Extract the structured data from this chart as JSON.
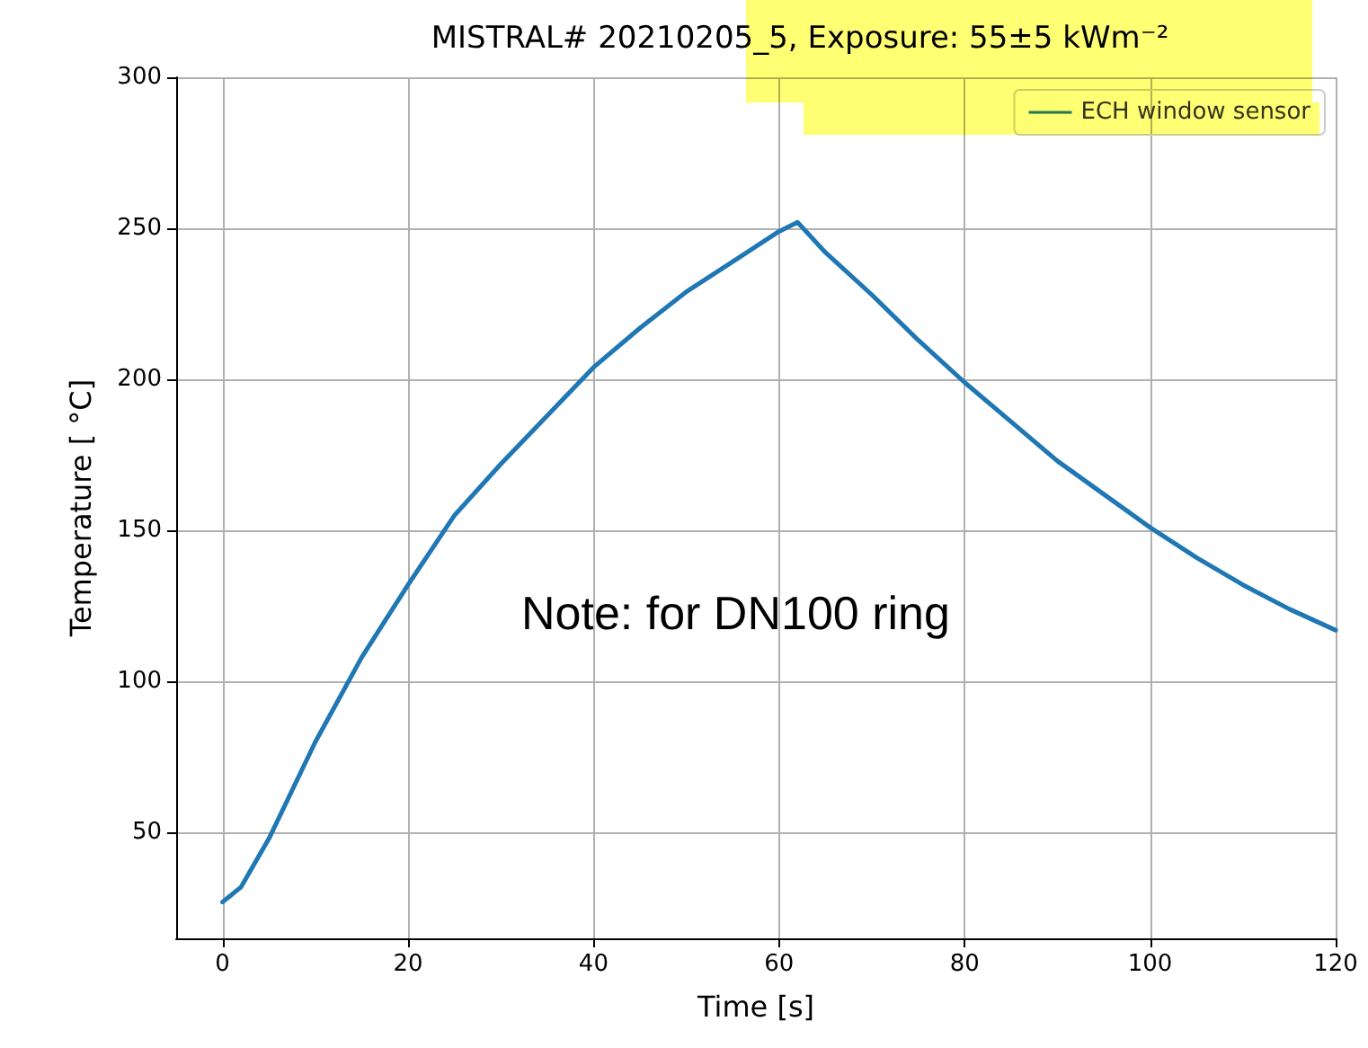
{
  "chart_data": {
    "type": "line",
    "title": "MISTRAL# 20210205_5, Exposure: 55±5 kWm⁻²",
    "xlabel": "Time [s]",
    "ylabel": "Temperature [ °C]",
    "annotations": [
      "Note: for DN100 ring"
    ],
    "x": [
      0,
      2,
      5,
      10,
      15,
      20,
      25,
      30,
      35,
      40,
      45,
      50,
      55,
      60,
      62,
      65,
      70,
      75,
      80,
      85,
      90,
      95,
      100,
      105,
      110,
      115,
      120
    ],
    "series": [
      {
        "name": "ECH window sensor",
        "color": "#1f77b4",
        "values": [
          27,
          32,
          48,
          80,
          108,
          132,
          155,
          172,
          188,
          204,
          217,
          229,
          239,
          249,
          252,
          242,
          228,
          213,
          199,
          186,
          173,
          162,
          151,
          141,
          132,
          124,
          117
        ]
      }
    ],
    "xlim": [
      -5,
      120
    ],
    "xticks": [
      0,
      20,
      40,
      60,
      80,
      100,
      120
    ],
    "ylim": [
      15,
      300
    ],
    "yticks": [
      50,
      100,
      150,
      200,
      250,
      300
    ],
    "grid": true,
    "legend": "top right",
    "marker": "none",
    "line_style": "solid"
  }
}
